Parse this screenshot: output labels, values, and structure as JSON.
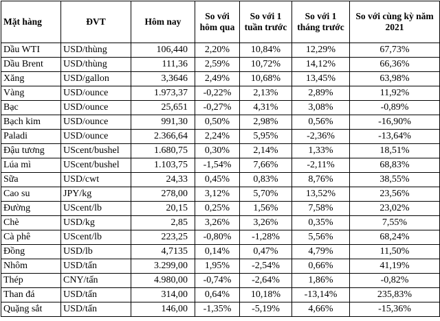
{
  "table": {
    "header": [
      "Mặt hàng",
      "ĐVT",
      "Hôm nay",
      "So với hôm qua",
      "So với 1 tuần trước",
      "So với 1 tháng trước",
      "So với cùng kỳ năm 2021"
    ],
    "rows": [
      [
        "Dầu WTI",
        "USD/thùng",
        "106,440",
        "2,20%",
        "10,84%",
        "12,29%",
        "67,73%"
      ],
      [
        "Dầu Brent",
        "USD/thùng",
        "111,36",
        "2,59%",
        "10,72%",
        "14,12%",
        "66,36%"
      ],
      [
        "Xăng",
        "USD/gallon",
        "3,3646",
        "2,49%",
        "10,68%",
        "13,45%",
        "63,98%"
      ],
      [
        "Vàng",
        "USD/ounce",
        "1.973,37",
        "-0,22%",
        "2,13%",
        "2,89%",
        "11,92%"
      ],
      [
        "Bạc",
        "USD/ounce",
        "25,651",
        "-0,27%",
        "4,31%",
        "3,08%",
        "-0,89%"
      ],
      [
        "Bạch kim",
        "USD/ounce",
        "991,30",
        "0,50%",
        "2,98%",
        "0,56%",
        "-16,90%"
      ],
      [
        "Paladi",
        "USD/ounce",
        "2.366,64",
        "2,24%",
        "5,95%",
        "-2,36%",
        "-13,64%"
      ],
      [
        "Đậu tương",
        "UScent/bushel",
        "1.680,75",
        "0,30%",
        "2,14%",
        "1,33%",
        "18,51%"
      ],
      [
        "Lúa mì",
        "UScent/bushel",
        "1.103,75",
        "-1,54%",
        "7,66%",
        "-2,11%",
        "68,83%"
      ],
      [
        "Sữa",
        "USD/cwt",
        "24,33",
        "0,45%",
        "0,83%",
        "8,76%",
        "38,55%"
      ],
      [
        "Cao su",
        "JPY/kg",
        "278,00",
        "3,12%",
        "5,70%",
        "13,52%",
        "23,56%"
      ],
      [
        "Đường",
        "UScent/lb",
        "20,15",
        "0,25%",
        "1,56%",
        "7,58%",
        "23,02%"
      ],
      [
        "Chè",
        "USD/kg",
        "2,85",
        "3,26%",
        "3,26%",
        "0,35%",
        "7,55%"
      ],
      [
        "Cà phê",
        "UScent/lb",
        "223,25",
        "-0,80%",
        "-1,28%",
        "5,56%",
        "68,24%"
      ],
      [
        "Đồng",
        "USD/lb",
        "4,7135",
        "0,14%",
        "0,47%",
        "4,79%",
        "11,50%"
      ],
      [
        "Nhôm",
        "USD/tấn",
        "3.299,00",
        "1,95%",
        "-2,54%",
        "0,66%",
        "41,19%"
      ],
      [
        "Thép",
        "CNY/tấn",
        "4.980,00",
        "-0,74%",
        "-2,64%",
        "1,86%",
        "-0,82%"
      ],
      [
        "Than đá",
        "USD/tấn",
        "314,00",
        "0,64%",
        "10,18%",
        "-13,14%",
        "235,83%"
      ],
      [
        "Quặng sắt",
        "USD/tấn",
        "146,00",
        "-1,35%",
        "-5,19%",
        "4,66%",
        "-15,36%"
      ]
    ]
  }
}
